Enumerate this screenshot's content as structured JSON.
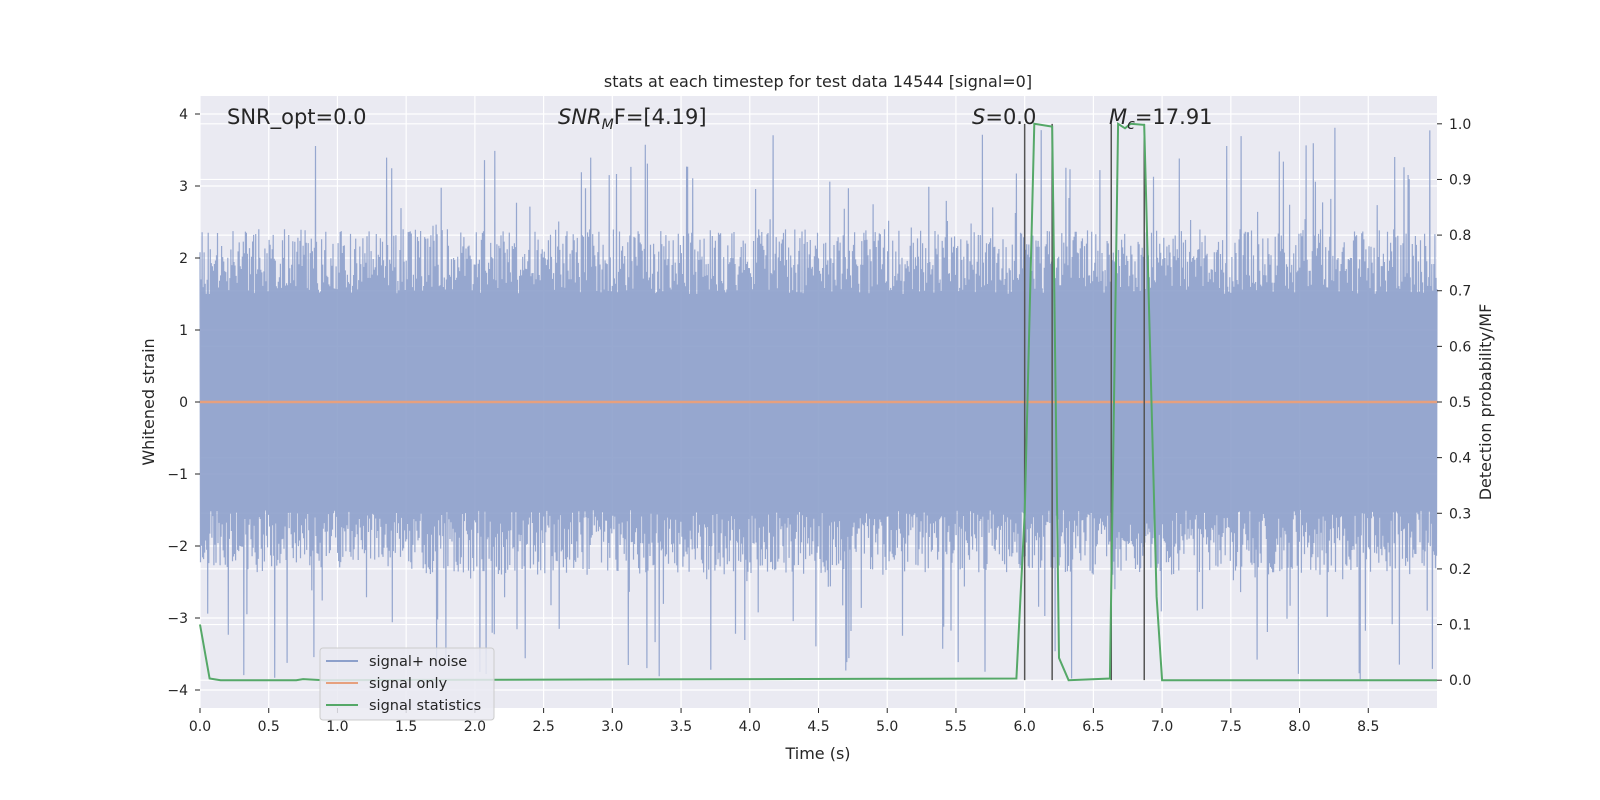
{
  "chart_data": {
    "type": "line",
    "title": "stats at each timestep for test data 14544 [signal=0]",
    "xlabel": "Time (s)",
    "ylabel": "Whitened strain",
    "y2label": "Detection probability/MF",
    "xlim": [
      0,
      9.0
    ],
    "ylim": [
      -4.25,
      4.25
    ],
    "y2lim": [
      -0.05,
      1.05
    ],
    "x_ticks": [
      0.0,
      0.5,
      1.0,
      1.5,
      2.0,
      2.5,
      3.0,
      3.5,
      4.0,
      4.5,
      5.0,
      5.5,
      6.0,
      6.5,
      7.0,
      7.5,
      8.0,
      8.5
    ],
    "x_tick_labels": [
      "0.0",
      "0.5",
      "1.0",
      "1.5",
      "2.0",
      "2.5",
      "3.0",
      "3.5",
      "4.0",
      "4.5",
      "5.0",
      "5.5",
      "6.0",
      "6.5",
      "7.0",
      "7.5",
      "8.0",
      "8.5"
    ],
    "y_ticks": [
      4,
      3,
      2,
      1,
      0,
      -1,
      -2,
      -3,
      -4
    ],
    "y_tick_labels": [
      "4",
      "3",
      "2",
      "1",
      "0",
      "−1",
      "−2",
      "−3",
      "−4"
    ],
    "y2_ticks": [
      1.0,
      0.9,
      0.8,
      0.7,
      0.6,
      0.5,
      0.4,
      0.3,
      0.2,
      0.1,
      0.0
    ],
    "y2_tick_labels": [
      "1.0",
      "0.9",
      "0.8",
      "0.7",
      "0.6",
      "0.5",
      "0.4",
      "0.3",
      "0.2",
      "0.1",
      "0.0"
    ],
    "grid": true,
    "legend_position": "lower-left",
    "annotations": {
      "snr_opt": "SNR_opt=0.0",
      "snr_mf_main": "SNR",
      "snr_mf_sub": "M",
      "snr_mf_rest": "F=[4.19]",
      "s_main": "S",
      "s_rest": "=0.0",
      "mc_main": "M",
      "mc_sub": "c",
      "mc_rest": "=17.91"
    },
    "series": [
      {
        "name": "signal+ noise",
        "color": "#8da0cb",
        "noise_envelope_y": [
          -1.5,
          1.5
        ],
        "peak_y": [
          -3.85,
          3.85
        ]
      },
      {
        "name": "signal only",
        "color": "#e6a07e",
        "x": [
          0.0,
          9.0
        ],
        "y": [
          0.0,
          0.0
        ]
      },
      {
        "name": "signal statistics",
        "color": "#55a868",
        "axis": "right",
        "x": [
          0.0,
          0.07,
          0.15,
          0.7,
          0.75,
          0.9,
          5.94,
          6.0,
          6.07,
          6.2,
          6.25,
          6.32,
          6.62,
          6.68,
          6.73,
          6.77,
          6.87,
          6.96,
          7.0,
          9.0
        ],
        "y": [
          0.1,
          0.003,
          0.0,
          0.0,
          0.002,
          0.0,
          0.003,
          0.3,
          1.0,
          0.995,
          0.04,
          0.0,
          0.003,
          1.0,
          0.992,
          1.0,
          0.998,
          0.15,
          0.0,
          0.0
        ]
      }
    ],
    "vertical_lines_x": [
      6.0,
      6.2,
      6.63,
      6.87
    ],
    "vertical_lines_range_y2": [
      0.0,
      1.0
    ]
  }
}
